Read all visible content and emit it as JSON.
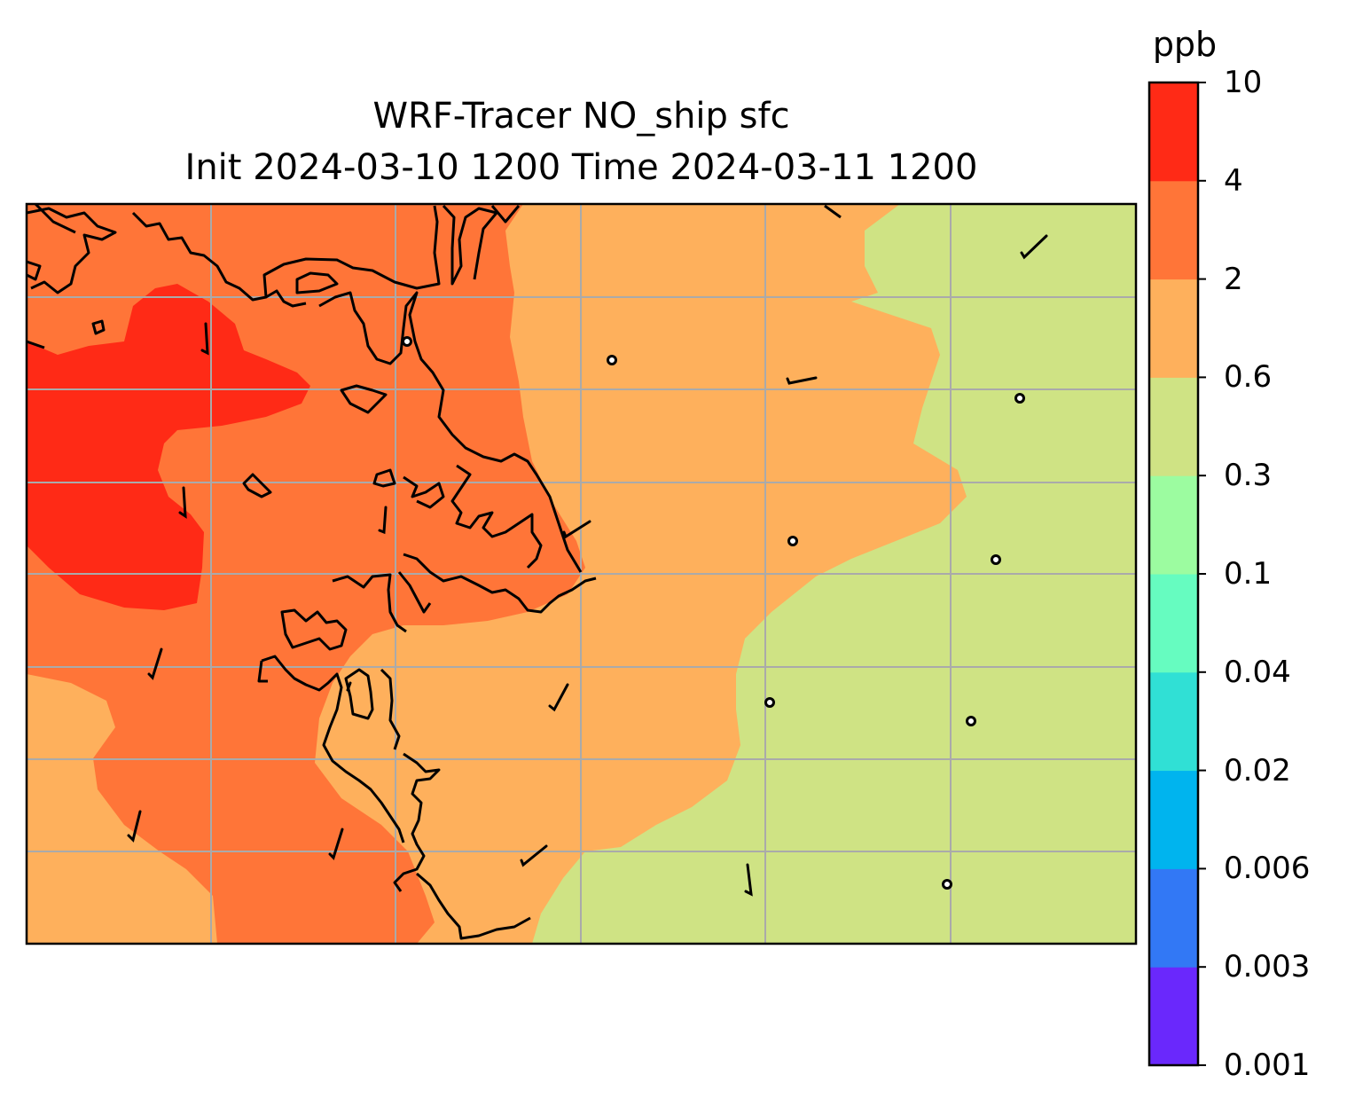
{
  "title_line1": "WRF-Tracer NO_ship sfc",
  "title_line2": "Init 2024-03-10 1200 Time 2024-03-11 1200",
  "colorbar": {
    "unit": "ppb",
    "levels": [
      "0.001",
      "0.003",
      "0.006",
      "0.02",
      "0.04",
      "0.1",
      "0.3",
      "0.6",
      "2",
      "4",
      "10"
    ],
    "colors": [
      "#6a28fc",
      "#3278f5",
      "#00b4ee",
      "#30e0d5",
      "#66fcc0",
      "#9cfca0",
      "#cfe384",
      "#feb05c",
      "#ff7538",
      "#ff2a16"
    ]
  },
  "map": {
    "fill_colors": {
      "gt_4": "#ff2a16",
      "2_to_4": "#ff7538",
      "0_6_to_2": "#feb05c",
      "0_3_to_0_6": "#cfe384"
    },
    "gridline_color": "#aaaaaa",
    "coastline_color": "#000000",
    "wind_barbs": "present"
  }
}
